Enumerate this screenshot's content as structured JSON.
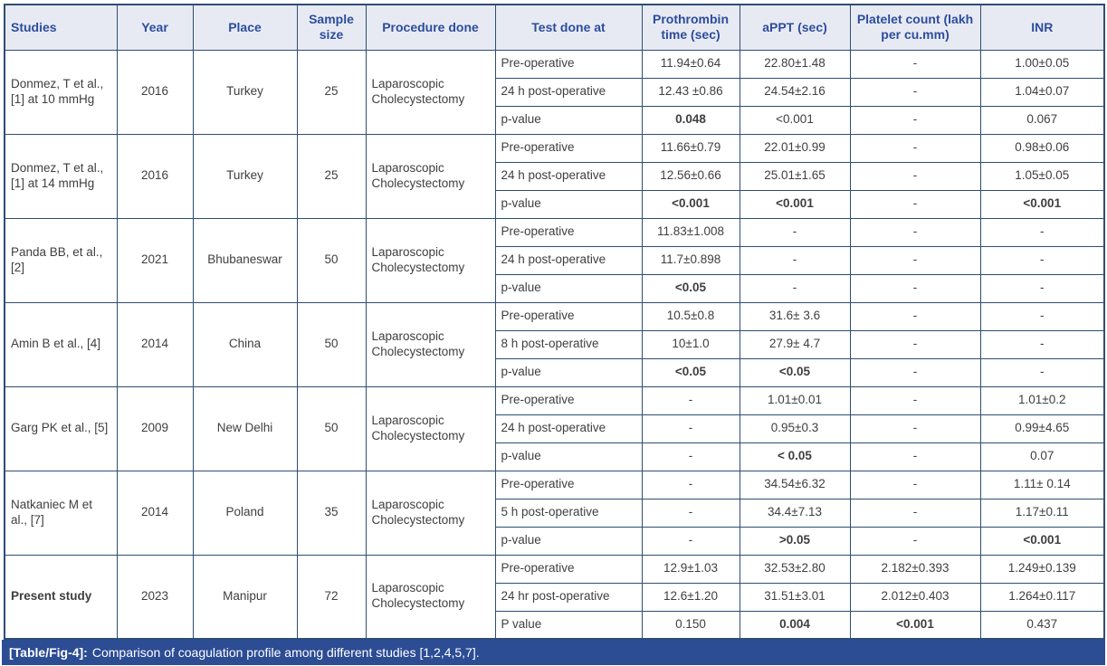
{
  "table": {
    "caption": {
      "label": "[Table/Fig-4]:",
      "text": "Comparison of coagulation profile among different studies [1,2,4,5,7]."
    },
    "columns": [
      "Studies",
      "Year",
      "Place",
      "Sample size",
      "Procedure done",
      "Test done at",
      "Prothrombin time (sec)",
      "aPPT (sec)",
      "Platelet count (lakh per cu.mm)",
      "INR"
    ],
    "value_column_names": [
      "prothrombin-time",
      "appt",
      "platelet-count",
      "inr"
    ],
    "studies": [
      {
        "name": "Donmez, T et al., [1] at 10 mmHg",
        "bold_name": false,
        "year": "2016",
        "place": "Turkey",
        "sample_size": "25",
        "procedure": "Laparoscopic Cholecystectomy",
        "rows": [
          {
            "test": "Pre-operative",
            "cells": [
              {
                "t": "11.94±0.64"
              },
              {
                "t": "22.80±1.48"
              },
              {
                "t": "-"
              },
              {
                "t": "1.00±0.05"
              }
            ]
          },
          {
            "test": "24 h post-operative",
            "cells": [
              {
                "t": "12.43 ±0.86"
              },
              {
                "t": "24.54±2.16"
              },
              {
                "t": "-"
              },
              {
                "t": "1.04±0.07"
              }
            ]
          },
          {
            "test": "p-value",
            "cells": [
              {
                "t": "0.048",
                "b": true
              },
              {
                "t": "<0.001"
              },
              {
                "t": "-"
              },
              {
                "t": "0.067"
              }
            ]
          }
        ]
      },
      {
        "name": "Donmez, T et al., [1] at 14 mmHg",
        "bold_name": false,
        "year": "2016",
        "place": "Turkey",
        "sample_size": "25",
        "procedure": "Laparoscopic Cholecystectomy",
        "rows": [
          {
            "test": "Pre-operative",
            "cells": [
              {
                "t": "11.66±0.79"
              },
              {
                "t": "22.01±0.99"
              },
              {
                "t": "-"
              },
              {
                "t": "0.98±0.06"
              }
            ]
          },
          {
            "test": "24 h post-operative",
            "cells": [
              {
                "t": "12.56±0.66"
              },
              {
                "t": "25.01±1.65"
              },
              {
                "t": "-"
              },
              {
                "t": "1.05±0.05"
              }
            ]
          },
          {
            "test": "p-value",
            "cells": [
              {
                "t": "<0.001",
                "b": true
              },
              {
                "t": "<0.001",
                "b": true
              },
              {
                "t": "-"
              },
              {
                "t": "<0.001",
                "b": true
              }
            ]
          }
        ]
      },
      {
        "name": "Panda BB, et al., [2]",
        "bold_name": false,
        "year": "2021",
        "place": "Bhubaneswar",
        "sample_size": "50",
        "procedure": "Laparoscopic Cholecystectomy",
        "rows": [
          {
            "test": "Pre-operative",
            "cells": [
              {
                "t": "11.83±1.008"
              },
              {
                "t": "-"
              },
              {
                "t": "-"
              },
              {
                "t": "-"
              }
            ]
          },
          {
            "test": "24 h post-operative",
            "cells": [
              {
                "t": "11.7±0.898"
              },
              {
                "t": "-"
              },
              {
                "t": "-"
              },
              {
                "t": "-"
              }
            ]
          },
          {
            "test": "p-value",
            "cells": [
              {
                "t": "<0.05",
                "b": true
              },
              {
                "t": "-"
              },
              {
                "t": "-"
              },
              {
                "t": "-"
              }
            ]
          }
        ]
      },
      {
        "name": "Amin B et al., [4]",
        "bold_name": false,
        "year": "2014",
        "place": "China",
        "sample_size": "50",
        "procedure": "Laparoscopic Cholecystectomy",
        "rows": [
          {
            "test": "Pre-operative",
            "cells": [
              {
                "t": "10.5±0.8"
              },
              {
                "t": "31.6± 3.6"
              },
              {
                "t": "-"
              },
              {
                "t": "-"
              }
            ]
          },
          {
            "test": "8 h post-operative",
            "cells": [
              {
                "t": "10±1.0"
              },
              {
                "t": "27.9± 4.7"
              },
              {
                "t": "-"
              },
              {
                "t": "-"
              }
            ]
          },
          {
            "test": "p-value",
            "cells": [
              {
                "t": "<0.05",
                "b": true
              },
              {
                "t": "<0.05",
                "b": true
              },
              {
                "t": "-"
              },
              {
                "t": "-"
              }
            ]
          }
        ]
      },
      {
        "name": "Garg PK et al., [5]",
        "bold_name": false,
        "year": "2009",
        "place": "New Delhi",
        "sample_size": "50",
        "procedure": "Laparoscopic Cholecystectomy",
        "rows": [
          {
            "test": "Pre-operative",
            "cells": [
              {
                "t": "-"
              },
              {
                "t": "1.01±0.01"
              },
              {
                "t": "-"
              },
              {
                "t": "1.01±0.2"
              }
            ]
          },
          {
            "test": "24 h post-operative",
            "cells": [
              {
                "t": "-"
              },
              {
                "t": "0.95±0.3"
              },
              {
                "t": "-"
              },
              {
                "t": "0.99±4.65"
              }
            ]
          },
          {
            "test": "p-value",
            "cells": [
              {
                "t": "-"
              },
              {
                "t": "< 0.05",
                "b": true
              },
              {
                "t": "-"
              },
              {
                "t": "0.07"
              }
            ]
          }
        ]
      },
      {
        "name": "Natkaniec M et al., [7]",
        "bold_name": false,
        "year": "2014",
        "place": "Poland",
        "sample_size": "35",
        "procedure": "Laparoscopic Cholecystectomy",
        "rows": [
          {
            "test": "Pre-operative",
            "cells": [
              {
                "t": "-"
              },
              {
                "t": "34.54±6.32"
              },
              {
                "t": "-"
              },
              {
                "t": "1.11± 0.14"
              }
            ]
          },
          {
            "test": "5 h post-operative",
            "cells": [
              {
                "t": "-"
              },
              {
                "t": "34.4±7.13"
              },
              {
                "t": "-"
              },
              {
                "t": "1.17±0.11"
              }
            ]
          },
          {
            "test": "p-value",
            "cells": [
              {
                "t": "-"
              },
              {
                "t": ">0.05",
                "b": true
              },
              {
                "t": "-"
              },
              {
                "t": "<0.001",
                "b": true
              }
            ]
          }
        ]
      },
      {
        "name": "Present study",
        "bold_name": true,
        "year": "2023",
        "place": "Manipur",
        "sample_size": "72",
        "procedure": "Laparoscopic Cholecystectomy",
        "rows": [
          {
            "test": "Pre-operative",
            "cells": [
              {
                "t": "12.9±1.03"
              },
              {
                "t": "32.53±2.80"
              },
              {
                "t": "2.182±0.393"
              },
              {
                "t": "1.249±0.139"
              }
            ]
          },
          {
            "test": "24 hr post-operative",
            "cells": [
              {
                "t": "12.6±1.20"
              },
              {
                "t": "31.51±3.01"
              },
              {
                "t": "2.012±0.403"
              },
              {
                "t": "1.264±0.117"
              }
            ]
          },
          {
            "test": "P value",
            "cells": [
              {
                "t": "0.150"
              },
              {
                "t": "0.004",
                "b": true
              },
              {
                "t": "<0.001",
                "b": true
              },
              {
                "t": "0.437"
              }
            ]
          }
        ]
      }
    ],
    "colors": {
      "header_bg": "#e8eaf3",
      "header_text": "#2c4d9d",
      "grid_border": "#2e4d74",
      "caption_bg": "#2c4c94",
      "caption_text": "#ffffff",
      "body_text": "#3f3f3f"
    }
  }
}
